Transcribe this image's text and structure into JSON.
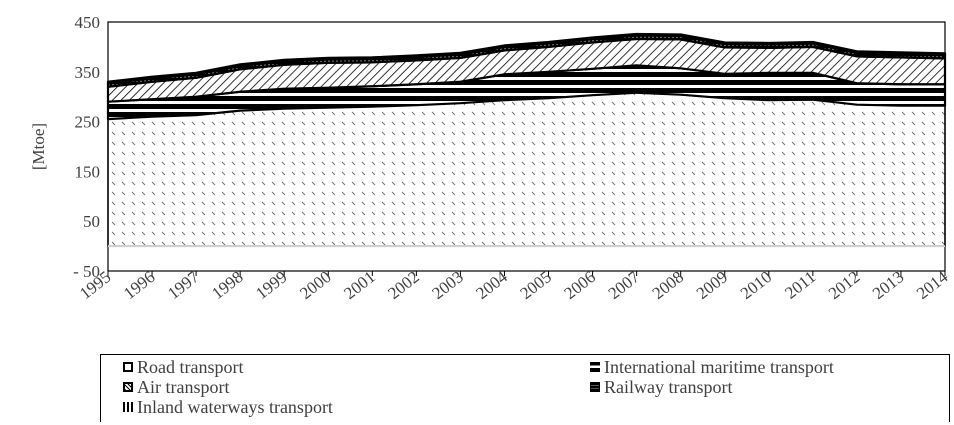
{
  "chart_data": {
    "type": "area",
    "stacked": true,
    "title": "",
    "xlabel": "",
    "ylabel": "[Mtoe]",
    "ylim": [
      -50,
      450
    ],
    "yticks": [
      -50,
      50,
      150,
      250,
      350,
      450
    ],
    "ytick_labels": [
      "- 50",
      "50",
      "150",
      "250",
      "350",
      "450"
    ],
    "categories": [
      "1995",
      "1996",
      "1997",
      "1998",
      "1999",
      "2000",
      "2001",
      "2002",
      "2003",
      "2004",
      "2005",
      "2006",
      "2007",
      "2008",
      "2009",
      "2010",
      "2011",
      "2012",
      "2013",
      "2014"
    ],
    "series": [
      {
        "name": "Road transport",
        "values": [
          255,
          260,
          263,
          272,
          276,
          278,
          280,
          283,
          287,
          293,
          297,
          303,
          308,
          304,
          297,
          293,
          294,
          284,
          282,
          282
        ]
      },
      {
        "name": "International maritime transport",
        "values": [
          35,
          35,
          37,
          38,
          40,
          40,
          41,
          42,
          43,
          52,
          53,
          53,
          55,
          53,
          49,
          55,
          54,
          43,
          43,
          43
        ]
      },
      {
        "name": "Air transport",
        "values": [
          30,
          35,
          38,
          45,
          48,
          50,
          48,
          48,
          48,
          48,
          50,
          53,
          53,
          58,
          53,
          50,
          52,
          54,
          54,
          52
        ]
      },
      {
        "name": "Railway transport",
        "values": [
          7,
          7,
          7,
          7,
          7,
          7,
          7,
          7,
          7,
          7,
          7,
          7,
          7,
          7,
          7,
          7,
          7,
          7,
          7,
          7
        ]
      },
      {
        "name": "Inland waterways transport",
        "values": [
          3,
          3,
          3,
          3,
          3,
          3,
          3,
          3,
          3,
          3,
          3,
          3,
          3,
          3,
          3,
          3,
          3,
          3,
          3,
          3
        ]
      }
    ],
    "legend_position": "bottom",
    "grid": false
  }
}
